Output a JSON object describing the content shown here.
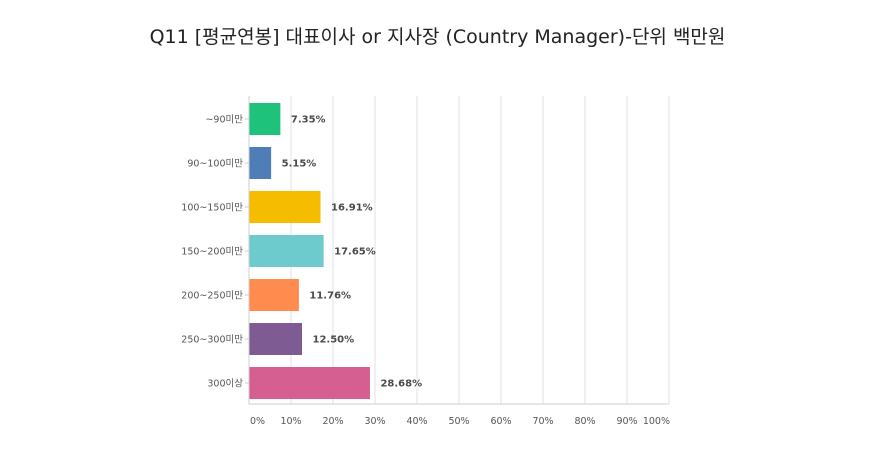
{
  "chart_data": {
    "type": "bar",
    "orientation": "horizontal",
    "title": "Q11 [평균연봉] 대표이사 or 지사장 (Country Manager)-단위 백만원",
    "categories": [
      "~90미만",
      "90~100미만",
      "100~150미만",
      "150~200미만",
      "200~250미만",
      "250~300미만",
      "300이상"
    ],
    "values": [
      7.35,
      5.15,
      16.91,
      17.65,
      11.76,
      12.5,
      28.68
    ],
    "data_labels": [
      "7.35%",
      "5.15%",
      "16.91%",
      "17.65%",
      "11.76%",
      "12.50%",
      "28.68%"
    ],
    "colors": [
      "#1ec27a",
      "#4f7db8",
      "#f5bc00",
      "#6ecbcd",
      "#ff8b4f",
      "#7f5b94",
      "#d45f90"
    ],
    "xlim": [
      0,
      100
    ],
    "x_ticks": [
      0,
      10,
      20,
      30,
      40,
      50,
      60,
      70,
      80,
      90,
      100
    ],
    "x_tick_labels": [
      "0%",
      "10%",
      "20%",
      "30%",
      "40%",
      "50%",
      "60%",
      "70%",
      "80%",
      "90%",
      "100%"
    ],
    "xlabel": "",
    "ylabel": "",
    "grid": "vertical"
  }
}
